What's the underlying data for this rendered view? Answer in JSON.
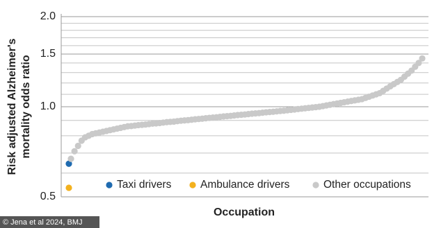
{
  "chart_data": {
    "type": "scatter",
    "ylabel": [
      "Risk adjusted Alzheimer's",
      "mortality odds ratio"
    ],
    "xlabel": "Occupation",
    "credit": "© Jena et al 2024, BMJ",
    "ylog": true,
    "ylim": [
      0.5,
      2.0
    ],
    "yticks": [
      0.5,
      {
        "value": 1,
        "label": "1.0"
      },
      1.5,
      {
        "value": 2,
        "label": "2.0"
      }
    ],
    "minor_grid": [
      0.6,
      0.7,
      0.8,
      0.9,
      1.1,
      1.2,
      1.3,
      1.4,
      1.6,
      1.7,
      1.8,
      1.9
    ],
    "grid": true,
    "legend": "bottom",
    "series": [
      {
        "name": "Taxi drivers",
        "color": "#1f6bb0",
        "values": [
          0.645
        ]
      },
      {
        "name": "Ambulance drivers",
        "color": "#f3b11e",
        "values": [
          0.536
        ]
      },
      {
        "name": "Other occupations",
        "color": "#c9c9c9",
        "values": [
          0.67,
          0.71,
          0.74,
          0.77,
          0.79,
          0.8,
          0.81,
          0.815,
          0.82,
          0.825,
          0.83,
          0.835,
          0.84,
          0.845,
          0.85,
          0.855,
          0.86,
          0.862,
          0.865,
          0.868,
          0.87,
          0.872,
          0.875,
          0.878,
          0.88,
          0.882,
          0.885,
          0.888,
          0.89,
          0.892,
          0.895,
          0.898,
          0.9,
          0.902,
          0.905,
          0.908,
          0.91,
          0.912,
          0.915,
          0.918,
          0.92,
          0.922,
          0.925,
          0.928,
          0.93,
          0.932,
          0.935,
          0.938,
          0.94,
          0.942,
          0.945,
          0.948,
          0.95,
          0.952,
          0.955,
          0.958,
          0.96,
          0.962,
          0.965,
          0.968,
          0.97,
          0.973,
          0.976,
          0.979,
          0.982,
          0.985,
          0.988,
          0.991,
          0.994,
          0.997,
          1.0,
          1.005,
          1.01,
          1.015,
          1.02,
          1.025,
          1.03,
          1.035,
          1.04,
          1.045,
          1.05,
          1.055,
          1.06,
          1.07,
          1.08,
          1.09,
          1.1,
          1.11,
          1.13,
          1.15,
          1.17,
          1.19,
          1.21,
          1.23,
          1.26,
          1.29,
          1.32,
          1.36,
          1.4,
          1.45
        ]
      }
    ]
  }
}
